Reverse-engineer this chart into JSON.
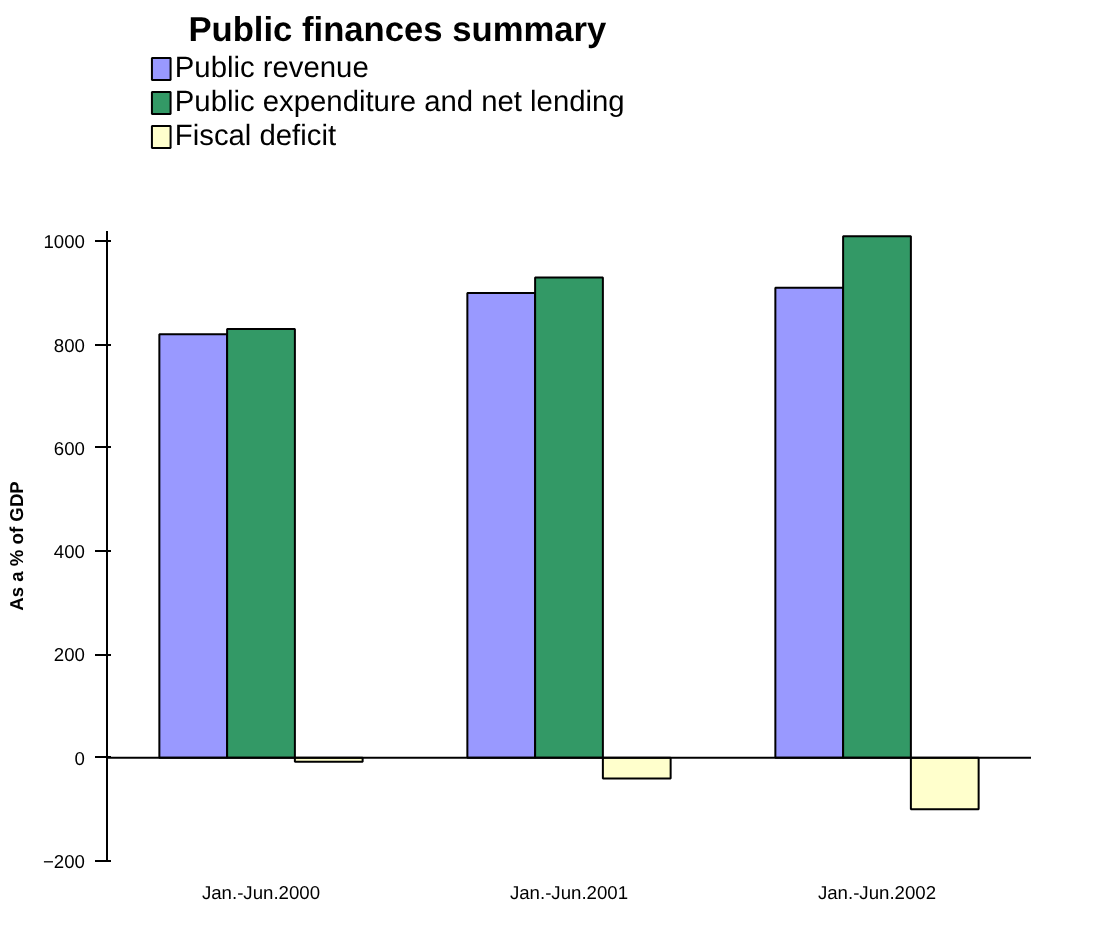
{
  "chart_data": {
    "type": "bar",
    "title": "Public finances summary",
    "ylabel": "As a % of GDP",
    "categories": [
      "Jan.-Jun.2000",
      "Jan.-Jun.2001",
      "Jan.-Jun.2002"
    ],
    "series": [
      {
        "name": "Public revenue",
        "color": "#9999ff",
        "values": [
          820,
          900,
          910
        ]
      },
      {
        "name": "Public expenditure and net lending",
        "color": "#339966",
        "values": [
          830,
          930,
          1010
        ]
      },
      {
        "name": "Fiscal deficit",
        "color": "#ffffcc",
        "values": [
          -8,
          -40,
          -100
        ]
      }
    ],
    "ylim": [
      -200,
      1020
    ],
    "yticks": [
      -200,
      0,
      200,
      400,
      600,
      800,
      1000
    ],
    "legend": "top left"
  }
}
